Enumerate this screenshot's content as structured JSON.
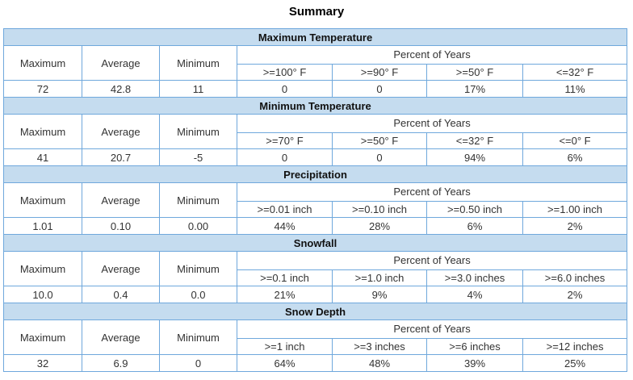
{
  "page": {
    "title": "Summary"
  },
  "labels": {
    "maximum": "Maximum",
    "average": "Average",
    "minimum": "Minimum",
    "percent_of_years": "Percent of Years"
  },
  "sections": [
    {
      "title": "Maximum Temperature",
      "thresholds": [
        ">=100° F",
        ">=90° F",
        ">=50° F",
        "<=32° F"
      ],
      "maximum": "72",
      "average": "42.8",
      "minimum": "11",
      "percents": [
        "0",
        "0",
        "17%",
        "11%"
      ]
    },
    {
      "title": "Minimum Temperature",
      "thresholds": [
        ">=70° F",
        ">=50° F",
        "<=32° F",
        "<=0° F"
      ],
      "maximum": "41",
      "average": "20.7",
      "minimum": "-5",
      "percents": [
        "0",
        "0",
        "94%",
        "6%"
      ]
    },
    {
      "title": "Precipitation",
      "thresholds": [
        ">=0.01 inch",
        ">=0.10 inch",
        ">=0.50 inch",
        ">=1.00 inch"
      ],
      "maximum": "1.01",
      "average": "0.10",
      "minimum": "0.00",
      "percents": [
        "44%",
        "28%",
        "6%",
        "2%"
      ]
    },
    {
      "title": "Snowfall",
      "thresholds": [
        ">=0.1 inch",
        ">=1.0 inch",
        ">=3.0 inches",
        ">=6.0 inches"
      ],
      "maximum": "10.0",
      "average": "0.4",
      "minimum": "0.0",
      "percents": [
        "21%",
        "9%",
        "4%",
        "2%"
      ]
    },
    {
      "title": "Snow Depth",
      "thresholds": [
        ">=1 inch",
        ">=3 inches",
        ">=6 inches",
        ">=12 inches"
      ],
      "maximum": "32",
      "average": "6.9",
      "minimum": "0",
      "percents": [
        "64%",
        "48%",
        "39%",
        "25%"
      ]
    }
  ]
}
